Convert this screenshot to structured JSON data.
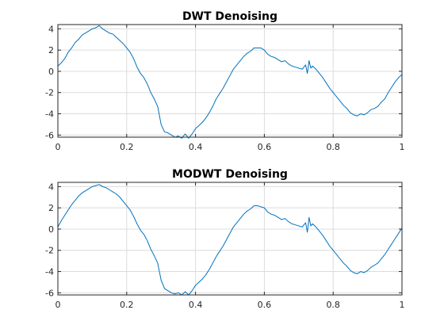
{
  "chart_data": [
    {
      "type": "line",
      "title": "DWT Denoising",
      "xlabel": "",
      "ylabel": "",
      "xlim": [
        0,
        1
      ],
      "ylim": [
        -6.2,
        4.4
      ],
      "xticks": [
        0,
        0.2,
        0.4,
        0.6,
        0.8,
        1
      ],
      "xtick_labels": [
        "0",
        "0.2",
        "0.4",
        "0.6",
        "0.8",
        "1"
      ],
      "yticks": [
        -6,
        -4,
        -2,
        0,
        2,
        4
      ],
      "ytick_labels": [
        "-6",
        "-4",
        "-2",
        "0",
        "2",
        "4"
      ],
      "grid": true,
      "color": "#0072BD",
      "series": [
        {
          "x": [
            0,
            0.01,
            0.02,
            0.03,
            0.04,
            0.05,
            0.06,
            0.07,
            0.08,
            0.09,
            0.1,
            0.11,
            0.12,
            0.13,
            0.14,
            0.15,
            0.16,
            0.17,
            0.18,
            0.19,
            0.2,
            0.21,
            0.22,
            0.23,
            0.24,
            0.25,
            0.26,
            0.27,
            0.28,
            0.29,
            0.3,
            0.31,
            0.32,
            0.33,
            0.34,
            0.35,
            0.36,
            0.37,
            0.38,
            0.39,
            0.4,
            0.41,
            0.42,
            0.43,
            0.44,
            0.45,
            0.46,
            0.47,
            0.48,
            0.49,
            0.5,
            0.51,
            0.52,
            0.53,
            0.54,
            0.55,
            0.56,
            0.57,
            0.58,
            0.59,
            0.6,
            0.61,
            0.62,
            0.63,
            0.64,
            0.65,
            0.66,
            0.67,
            0.68,
            0.69,
            0.7,
            0.71,
            0.72,
            0.725,
            0.73,
            0.735,
            0.74,
            0.75,
            0.76,
            0.77,
            0.78,
            0.79,
            0.8,
            0.81,
            0.82,
            0.83,
            0.84,
            0.85,
            0.86,
            0.87,
            0.88,
            0.89,
            0.9,
            0.91,
            0.92,
            0.93,
            0.94,
            0.95,
            0.96,
            0.97,
            0.98,
            0.99,
            1.0
          ],
          "values": [
            0.5,
            0.8,
            1.2,
            1.8,
            2.2,
            2.7,
            3.0,
            3.4,
            3.6,
            3.8,
            4.0,
            4.1,
            4.3,
            4.0,
            3.8,
            3.6,
            3.5,
            3.2,
            2.9,
            2.6,
            2.2,
            1.8,
            1.2,
            0.4,
            -0.2,
            -0.6,
            -1.2,
            -2.0,
            -2.6,
            -3.3,
            -5.0,
            -5.7,
            -5.8,
            -6.0,
            -6.2,
            -6.1,
            -6.3,
            -5.9,
            -6.3,
            -5.9,
            -5.4,
            -5.1,
            -4.8,
            -4.4,
            -3.9,
            -3.3,
            -2.6,
            -2.1,
            -1.6,
            -1.0,
            -0.4,
            0.2,
            0.6,
            1.0,
            1.4,
            1.7,
            1.9,
            2.2,
            2.2,
            2.2,
            2.0,
            1.6,
            1.4,
            1.3,
            1.1,
            0.9,
            1.0,
            0.7,
            0.5,
            0.4,
            0.3,
            0.2,
            0.6,
            -0.2,
            1.0,
            0.3,
            0.5,
            0.2,
            -0.2,
            -0.6,
            -1.1,
            -1.6,
            -2.0,
            -2.4,
            -2.8,
            -3.2,
            -3.5,
            -3.9,
            -4.1,
            -4.2,
            -4.0,
            -4.1,
            -3.9,
            -3.6,
            -3.5,
            -3.3,
            -2.9,
            -2.6,
            -2.0,
            -1.5,
            -1.0,
            -0.6,
            -0.3
          ]
        }
      ]
    },
    {
      "type": "line",
      "title": "MODWT Denoising",
      "xlabel": "",
      "ylabel": "",
      "xlim": [
        0,
        1
      ],
      "ylim": [
        -6.2,
        4.4
      ],
      "xticks": [
        0,
        0.2,
        0.4,
        0.6,
        0.8,
        1
      ],
      "xtick_labels": [
        "0",
        "0.2",
        "0.4",
        "0.6",
        "0.8",
        "1"
      ],
      "yticks": [
        -6,
        -4,
        -2,
        0,
        2,
        4
      ],
      "ytick_labels": [
        "-6",
        "-4",
        "-2",
        "0",
        "2",
        "4"
      ],
      "grid": true,
      "color": "#0072BD",
      "series": [
        {
          "x": [
            0,
            0.01,
            0.02,
            0.03,
            0.04,
            0.05,
            0.06,
            0.07,
            0.08,
            0.09,
            0.1,
            0.11,
            0.12,
            0.13,
            0.14,
            0.15,
            0.16,
            0.17,
            0.18,
            0.19,
            0.2,
            0.21,
            0.22,
            0.23,
            0.24,
            0.25,
            0.26,
            0.27,
            0.28,
            0.29,
            0.3,
            0.31,
            0.32,
            0.33,
            0.34,
            0.35,
            0.36,
            0.37,
            0.38,
            0.39,
            0.4,
            0.41,
            0.42,
            0.43,
            0.44,
            0.45,
            0.46,
            0.47,
            0.48,
            0.49,
            0.5,
            0.51,
            0.52,
            0.53,
            0.54,
            0.55,
            0.56,
            0.57,
            0.58,
            0.59,
            0.6,
            0.61,
            0.62,
            0.63,
            0.64,
            0.65,
            0.66,
            0.67,
            0.68,
            0.69,
            0.7,
            0.71,
            0.72,
            0.725,
            0.73,
            0.735,
            0.74,
            0.75,
            0.76,
            0.77,
            0.78,
            0.79,
            0.8,
            0.81,
            0.82,
            0.83,
            0.84,
            0.85,
            0.86,
            0.87,
            0.88,
            0.89,
            0.9,
            0.91,
            0.92,
            0.93,
            0.94,
            0.95,
            0.96,
            0.97,
            0.98,
            0.99,
            1.0
          ],
          "values": [
            0.2,
            0.8,
            1.3,
            1.8,
            2.3,
            2.7,
            3.1,
            3.4,
            3.6,
            3.8,
            4.0,
            4.1,
            4.2,
            4.0,
            3.9,
            3.7,
            3.5,
            3.3,
            3.0,
            2.6,
            2.2,
            1.8,
            1.2,
            0.5,
            -0.1,
            -0.5,
            -1.1,
            -1.9,
            -2.5,
            -3.2,
            -4.8,
            -5.6,
            -5.8,
            -6.0,
            -6.1,
            -6.0,
            -6.2,
            -5.9,
            -6.2,
            -5.8,
            -5.3,
            -5.0,
            -4.7,
            -4.3,
            -3.8,
            -3.2,
            -2.6,
            -2.1,
            -1.6,
            -1.0,
            -0.4,
            0.2,
            0.6,
            1.0,
            1.4,
            1.7,
            1.9,
            2.2,
            2.2,
            2.1,
            2.0,
            1.6,
            1.4,
            1.3,
            1.1,
            0.9,
            1.0,
            0.7,
            0.5,
            0.4,
            0.3,
            0.2,
            0.6,
            -0.3,
            1.1,
            0.3,
            0.5,
            0.2,
            -0.2,
            -0.6,
            -1.1,
            -1.6,
            -2.0,
            -2.4,
            -2.8,
            -3.2,
            -3.5,
            -3.9,
            -4.1,
            -4.2,
            -4.0,
            -4.1,
            -3.9,
            -3.6,
            -3.4,
            -3.2,
            -2.8,
            -2.4,
            -1.9,
            -1.4,
            -0.9,
            -0.4,
            0.1
          ]
        }
      ]
    }
  ]
}
